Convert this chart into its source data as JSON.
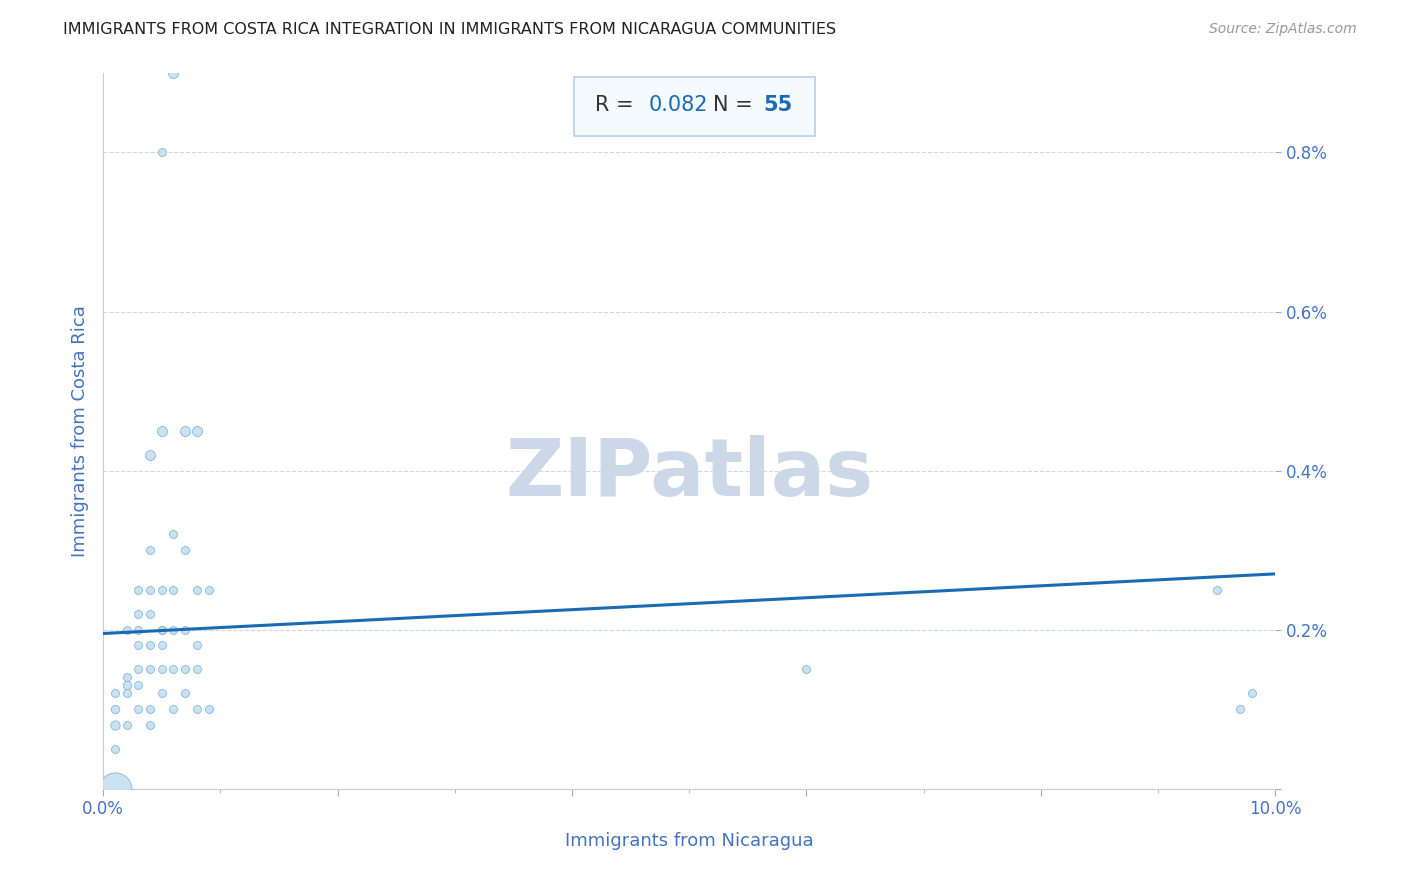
{
  "title": "IMMIGRANTS FROM COSTA RICA INTEGRATION IN IMMIGRANTS FROM NICARAGUA COMMUNITIES",
  "source": "Source: ZipAtlas.com",
  "xlabel": "Immigrants from Nicaragua",
  "ylabel": "Immigrants from Costa Rica",
  "R": 0.082,
  "N": 55,
  "watermark": "ZIPatlas",
  "scatter_points": [
    [
      0.001,
      0.0,
      380
    ],
    [
      0.001,
      0.0008,
      30
    ],
    [
      0.001,
      0.001,
      25
    ],
    [
      0.001,
      0.0012,
      22
    ],
    [
      0.001,
      0.0005,
      22
    ],
    [
      0.002,
      0.0013,
      25
    ],
    [
      0.002,
      0.0014,
      22
    ],
    [
      0.002,
      0.002,
      22
    ],
    [
      0.002,
      0.0012,
      22
    ],
    [
      0.002,
      0.0008,
      22
    ],
    [
      0.003,
      0.0022,
      22
    ],
    [
      0.003,
      0.0018,
      22
    ],
    [
      0.003,
      0.0025,
      22
    ],
    [
      0.003,
      0.002,
      22
    ],
    [
      0.003,
      0.0015,
      22
    ],
    [
      0.003,
      0.0013,
      22
    ],
    [
      0.003,
      0.001,
      22
    ],
    [
      0.004,
      0.0022,
      22
    ],
    [
      0.004,
      0.0025,
      22
    ],
    [
      0.004,
      0.0018,
      22
    ],
    [
      0.004,
      0.003,
      22
    ],
    [
      0.004,
      0.0015,
      22
    ],
    [
      0.004,
      0.001,
      22
    ],
    [
      0.004,
      0.0008,
      22
    ],
    [
      0.004,
      0.0042,
      35
    ],
    [
      0.005,
      0.0025,
      22
    ],
    [
      0.005,
      0.002,
      22
    ],
    [
      0.005,
      0.0018,
      22
    ],
    [
      0.005,
      0.0015,
      22
    ],
    [
      0.005,
      0.0012,
      22
    ],
    [
      0.005,
      0.002,
      22
    ],
    [
      0.005,
      0.0045,
      35
    ],
    [
      0.005,
      0.008,
      22
    ],
    [
      0.006,
      0.009,
      35
    ],
    [
      0.006,
      0.0032,
      22
    ],
    [
      0.006,
      0.0025,
      22
    ],
    [
      0.006,
      0.002,
      22
    ],
    [
      0.006,
      0.0015,
      22
    ],
    [
      0.006,
      0.001,
      22
    ],
    [
      0.007,
      0.003,
      22
    ],
    [
      0.007,
      0.0045,
      35
    ],
    [
      0.007,
      0.002,
      22
    ],
    [
      0.007,
      0.0015,
      22
    ],
    [
      0.007,
      0.0012,
      22
    ],
    [
      0.008,
      0.0045,
      35
    ],
    [
      0.008,
      0.0025,
      22
    ],
    [
      0.008,
      0.0018,
      22
    ],
    [
      0.008,
      0.0015,
      22
    ],
    [
      0.008,
      0.001,
      22
    ],
    [
      0.009,
      0.0025,
      22
    ],
    [
      0.009,
      0.001,
      22
    ],
    [
      0.095,
      0.0025,
      22
    ],
    [
      0.097,
      0.001,
      22
    ],
    [
      0.098,
      0.0012,
      22
    ],
    [
      0.06,
      0.0015,
      22
    ]
  ],
  "trend_line": {
    "x_start": 0.0,
    "x_end": 0.1,
    "y_start": 0.00195,
    "y_end": 0.0027
  },
  "dot_color": "#c5dff0",
  "dot_edge_color": "#7ab3d4",
  "trend_color": "#1a6bb5",
  "annotation_box_color": "#f5faff",
  "annotation_border_color": "#b8d0e8",
  "title_color": "#222222",
  "axis_label_color": "#4472c4",
  "tick_color": "#4472c4",
  "grid_color": "#d0d8e8",
  "watermark_color": "#ccd8e8",
  "source_color": "#999999",
  "xlim": [
    0.0,
    0.1
  ],
  "ylim": [
    0.0,
    0.009
  ],
  "xticks": [
    0.0,
    0.02,
    0.04,
    0.06,
    0.08,
    0.1
  ],
  "xtick_labels": [
    "0.0%",
    "",
    "",
    "",
    "",
    "10.0%"
  ],
  "yticks": [
    0.0,
    0.002,
    0.004,
    0.006,
    0.008
  ],
  "ytick_labels": [
    "",
    "0.2%",
    "0.4%",
    "0.6%",
    "0.8%"
  ]
}
